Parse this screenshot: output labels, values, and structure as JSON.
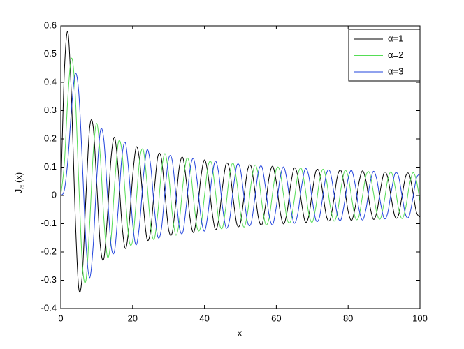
{
  "chart_data": {
    "type": "line",
    "xlabel": "x",
    "ylabel": [
      "J",
      "α",
      "(x)"
    ],
    "x": [
      0,
      1,
      2,
      3,
      4,
      5,
      6,
      7,
      8,
      9,
      10,
      11,
      12,
      13,
      14,
      15,
      16,
      17,
      18,
      19,
      20,
      21,
      22,
      23,
      24,
      25,
      26,
      27,
      28,
      29,
      30,
      31,
      32,
      33,
      34,
      35,
      36,
      37,
      38,
      39,
      40,
      41,
      42,
      43,
      44,
      45,
      46,
      47,
      48,
      49,
      50,
      51,
      52,
      53,
      54,
      55,
      56,
      57,
      58,
      59,
      60,
      61,
      62,
      63,
      64,
      65,
      66,
      67,
      68,
      69,
      70,
      71,
      72,
      73,
      74,
      75,
      76,
      77,
      78,
      79,
      80,
      81,
      82,
      83,
      84,
      85,
      86,
      87,
      88,
      89,
      90,
      91,
      92,
      93,
      94,
      95,
      96,
      97,
      98,
      99,
      100
    ],
    "series": [
      {
        "name": "α=1",
        "color": "#000000",
        "values": [
          0,
          0.44,
          0.577,
          0.339,
          -0.066,
          -0.328,
          -0.277,
          -0.005,
          0.235,
          0.245,
          0.043,
          -0.177,
          -0.223,
          -0.07,
          0.133,
          0.205,
          0.09,
          -0.098,
          -0.188,
          -0.106,
          0.067,
          0.171,
          0.117,
          -0.04,
          -0.154,
          -0.125,
          0.015,
          0.137,
          0.131,
          0.007,
          -0.119,
          -0.133,
          -0.027,
          0.101,
          0.133,
          0.044,
          -0.082,
          -0.131,
          -0.059,
          0.064,
          0.126,
          0.072,
          -0.046,
          -0.12,
          -0.083,
          0.028,
          0.111,
          0.091,
          -0.011,
          -0.101,
          -0.098,
          -0.005,
          0.09,
          0.102,
          0.02,
          -0.078,
          -0.103,
          -0.034,
          0.065,
          0.103,
          0.047,
          -0.052,
          -0.101,
          -0.058,
          0.038,
          0.097,
          0.067,
          -0.024,
          -0.092,
          -0.075,
          0.01,
          0.085,
          0.081,
          0.003,
          -0.076,
          -0.085,
          -0.016,
          0.067,
          0.088,
          0.028,
          -0.056,
          -0.088,
          -0.039,
          0.045,
          0.087,
          0.049,
          -0.033,
          -0.084,
          -0.058,
          0.021,
          0.08,
          0.065,
          -0.009,
          -0.074,
          -0.071,
          -0.002,
          0.067,
          0.075,
          0.014,
          -0.059,
          -0.077
        ]
      },
      {
        "name": "α=2",
        "color": "#55dd55",
        "values": [
          0,
          0.115,
          0.353,
          0.486,
          0.364,
          0.047,
          -0.243,
          -0.301,
          -0.113,
          0.145,
          0.255,
          0.139,
          -0.085,
          -0.218,
          -0.152,
          0.042,
          0.186,
          0.158,
          -0.008,
          -0.158,
          -0.16,
          -0.02,
          0.131,
          0.159,
          0.043,
          -0.106,
          -0.155,
          -0.063,
          0.083,
          0.148,
          0.078,
          -0.06,
          -0.14,
          -0.091,
          0.038,
          0.129,
          0.101,
          -0.018,
          -0.117,
          -0.108,
          -0.001,
          0.104,
          0.113,
          0.019,
          -0.09,
          -0.115,
          -0.035,
          0.075,
          0.114,
          0.049,
          -0.06,
          -0.112,
          -0.061,
          0.044,
          0.107,
          0.072,
          -0.029,
          -0.101,
          -0.08,
          0.013,
          0.093,
          0.087,
          0.002,
          -0.084,
          -0.091,
          -0.016,
          0.073,
          0.094,
          0.029,
          -0.062,
          -0.095,
          -0.041,
          0.05,
          0.093,
          0.051,
          -0.037,
          -0.09,
          -0.061,
          0.024,
          0.086,
          0.068,
          -0.011,
          -0.08,
          -0.074,
          -0.001,
          0.072,
          0.079,
          0.013,
          -0.064,
          -0.082,
          -0.025,
          0.054,
          0.083,
          0.035,
          -0.044,
          -0.082,
          -0.045,
          0.033,
          0.08,
          0.053,
          -0.022
        ]
      },
      {
        "name": "α=3",
        "color": "#2244dd",
        "values": [
          0,
          0.02,
          0.129,
          0.309,
          0.43,
          0.365,
          0.115,
          -0.168,
          -0.291,
          -0.181,
          0.058,
          0.227,
          0.195,
          0.003,
          -0.177,
          -0.194,
          -0.044,
          0.135,
          0.186,
          0.073,
          -0.099,
          -0.175,
          -0.093,
          0.067,
          0.161,
          0.108,
          -0.039,
          -0.146,
          -0.119,
          0.014,
          0.129,
          0.125,
          0.009,
          -0.112,
          -0.129,
          -0.029,
          0.094,
          0.129,
          0.047,
          -0.075,
          -0.126,
          -0.062,
          0.057,
          0.121,
          0.075,
          -0.039,
          -0.114,
          -0.085,
          0.021,
          0.106,
          0.093,
          -0.004,
          -0.095,
          -0.098,
          -0.012,
          0.084,
          0.101,
          0.027,
          -0.071,
          -0.103,
          -0.04,
          0.057,
          0.101,
          0.052,
          -0.044,
          -0.098,
          -0.063,
          0.029,
          0.093,
          0.071,
          -0.015,
          -0.087,
          -0.078,
          0.002,
          0.079,
          0.083,
          0.012,
          -0.07,
          -0.086,
          -0.024,
          0.06,
          0.088,
          0.035,
          -0.048,
          -0.087,
          -0.046,
          0.037,
          0.085,
          0.055,
          -0.025,
          -0.081,
          -0.063,
          0.013,
          0.076,
          0.069,
          -0.001,
          -0.069,
          -0.073,
          -0.011,
          0.061,
          0.076
        ]
      }
    ],
    "xlim": [
      0,
      100
    ],
    "xticks": [
      0,
      20,
      40,
      60,
      80,
      100
    ],
    "ylim": [
      -0.4,
      0.6
    ],
    "yticks": [
      -0.4,
      -0.3,
      -0.2,
      -0.1,
      0,
      0.1,
      0.2,
      0.3,
      0.4,
      0.5,
      0.6
    ],
    "grid": false,
    "legend": "top-right"
  }
}
